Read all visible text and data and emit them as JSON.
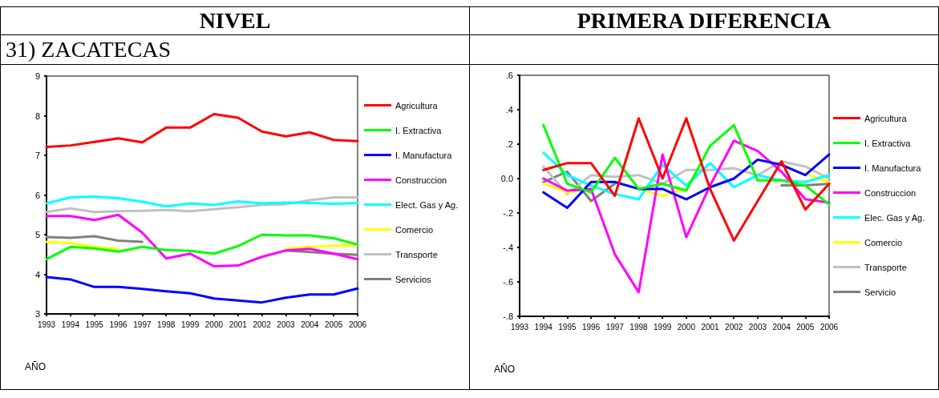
{
  "chart_data": [
    {
      "type": "line",
      "title": "NIVEL",
      "subtitle": "31) ZACATECAS",
      "xlabel": "AÑO",
      "x": [
        1993,
        1994,
        1995,
        1996,
        1997,
        1998,
        1999,
        2000,
        2001,
        2002,
        2003,
        2004,
        2005,
        2006
      ],
      "xlim": [
        1993,
        2006
      ],
      "xticks": [
        1993,
        1994,
        1995,
        1996,
        1997,
        1998,
        1999,
        2000,
        2001,
        2002,
        2003,
        2004,
        2005,
        2006
      ],
      "ylim": [
        3,
        9
      ],
      "yticks": [
        3,
        4,
        5,
        6,
        7,
        8,
        9
      ],
      "grid": false,
      "legend": "right",
      "marker": "none",
      "line_style": "solid",
      "series": [
        {
          "name": "Agricultura",
          "color": "#ff0000",
          "values": [
            7.21,
            7.25,
            7.34,
            7.43,
            7.33,
            7.7,
            7.7,
            8.04,
            7.95,
            7.6,
            7.48,
            7.58,
            7.39,
            7.36
          ]
        },
        {
          "name": "I. Extractiva",
          "color": "#00ff00",
          "values": [
            4.38,
            4.69,
            4.65,
            4.57,
            4.69,
            4.61,
            4.59,
            4.52,
            4.71,
            5.0,
            4.98,
            4.98,
            4.91,
            4.75
          ]
        },
        {
          "name": "I. Manufactura",
          "color": "#0000ff",
          "values": [
            3.93,
            3.87,
            3.68,
            3.68,
            3.63,
            3.57,
            3.52,
            3.39,
            3.34,
            3.29,
            3.41,
            3.49,
            3.49,
            3.64
          ]
        },
        {
          "name": "Construccion",
          "color": "#ff00ff",
          "values": [
            5.47,
            5.47,
            5.37,
            5.5,
            5.05,
            4.4,
            4.52,
            4.2,
            4.22,
            4.44,
            4.6,
            4.64,
            4.52,
            4.38
          ]
        },
        {
          "name": "Elect. Gas y Ag.",
          "color": "#00ffff",
          "values": [
            5.79,
            5.94,
            5.96,
            5.92,
            5.83,
            5.71,
            5.79,
            5.75,
            5.84,
            5.79,
            5.81,
            5.8,
            5.78,
            5.8
          ]
        },
        {
          "name": "Comercio",
          "color": "#ffff00",
          "values": [
            4.82,
            4.79,
            4.69,
            4.63,
            null,
            null,
            null,
            null,
            null,
            null,
            4.64,
            4.69,
            4.72,
            4.74
          ]
        },
        {
          "name": "Transporte",
          "color": "#c0c0c0",
          "values": [
            5.57,
            5.66,
            5.57,
            5.59,
            5.6,
            5.62,
            5.59,
            5.64,
            5.69,
            5.75,
            5.77,
            5.87,
            5.94,
            5.94
          ]
        },
        {
          "name": "Servicios",
          "color": "#808080",
          "values": [
            4.94,
            4.92,
            4.96,
            4.85,
            4.82,
            null,
            null,
            null,
            null,
            null,
            4.6,
            4.56,
            4.52,
            4.49
          ]
        }
      ]
    },
    {
      "type": "line",
      "title": "PRIMERA DIFERENCIA",
      "xlabel": "AÑO",
      "x": [
        1994,
        1995,
        1996,
        1997,
        1998,
        1999,
        2000,
        2001,
        2002,
        2003,
        2004,
        2005,
        2006
      ],
      "xlim": [
        1993,
        2006
      ],
      "xticks": [
        1993,
        1994,
        1995,
        1996,
        1997,
        1998,
        1999,
        2000,
        2001,
        2002,
        2003,
        2004,
        2005,
        2006
      ],
      "ylim": [
        -0.8,
        0.6
      ],
      "yticks": [
        {
          "value": -0.8,
          "label": "-.8"
        },
        {
          "value": -0.6,
          "label": "-.6"
        },
        {
          "value": -0.4,
          "label": "-.4"
        },
        {
          "value": -0.2,
          "label": "-.2"
        },
        {
          "value": 0,
          "label": "0.0"
        },
        {
          "value": 0.2,
          "label": ".2"
        },
        {
          "value": 0.4,
          "label": ".4"
        },
        {
          "value": 0.6,
          "label": ".6"
        }
      ],
      "grid": false,
      "legend": "right",
      "marker": "none",
      "line_style": "solid",
      "series": [
        {
          "name": "Agricultura",
          "color": "#ff0000",
          "values": [
            0.05,
            0.09,
            0.09,
            -0.1,
            0.35,
            0.0,
            0.35,
            -0.06,
            -0.36,
            -0.13,
            0.1,
            -0.18,
            -0.03
          ]
        },
        {
          "name": "I. Extractiva",
          "color": "#00ff00",
          "values": [
            0.31,
            -0.03,
            -0.08,
            0.12,
            -0.06,
            -0.03,
            -0.07,
            0.19,
            0.31,
            -0.01,
            -0.01,
            -0.04,
            -0.15
          ]
        },
        {
          "name": "I. Manufactura",
          "color": "#0000ff",
          "values": [
            -0.08,
            -0.17,
            -0.02,
            -0.02,
            -0.06,
            -0.06,
            -0.12,
            -0.05,
            0.0,
            0.11,
            0.08,
            0.02,
            0.14
          ]
        },
        {
          "name": "Construccion",
          "color": "#ff00ff",
          "values": [
            0.0,
            -0.07,
            -0.06,
            -0.44,
            -0.66,
            0.14,
            -0.34,
            -0.04,
            0.22,
            0.16,
            0.04,
            -0.12,
            -0.14
          ]
        },
        {
          "name": "Elec. Gas y Ag.",
          "color": "#00ffff",
          "values": [
            0.15,
            0.02,
            -0.04,
            -0.09,
            -0.12,
            0.08,
            -0.04,
            0.09,
            -0.05,
            0.02,
            -0.01,
            -0.02,
            0.02
          ]
        },
        {
          "name": "Comercio",
          "color": "#ffff00",
          "values": [
            -0.03,
            -0.08,
            -0.06,
            null,
            -0.06,
            -0.1,
            -0.06,
            null,
            null,
            null,
            null,
            0.03,
            -0.02
          ]
        },
        {
          "name": "Transporte",
          "color": "#c0c0c0",
          "values": [
            0.07,
            -0.09,
            0.02,
            0.01,
            0.02,
            -0.03,
            0.05,
            0.05,
            0.06,
            0.02,
            0.1,
            0.07,
            0.0
          ]
        },
        {
          "name": "Servicio",
          "color": "#808080",
          "values": [
            -0.02,
            0.04,
            -0.13,
            -0.03,
            null,
            null,
            null,
            null,
            null,
            null,
            -0.04,
            -0.04,
            -0.03
          ]
        }
      ]
    }
  ]
}
